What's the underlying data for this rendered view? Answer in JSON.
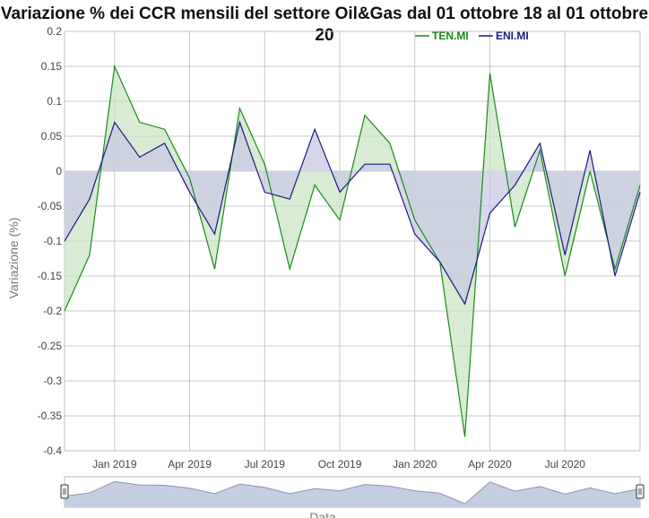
{
  "chart_data": {
    "type": "area",
    "title": "Variazione % dei CCR mensili del settore Oil&Gas dal 01 ottobre 18 al 01 ottobre 20",
    "ylabel": "Variazione (%)",
    "xlabel": "Data",
    "ylim": [
      -0.4,
      0.2
    ],
    "ytick_labels": [
      "0.2",
      "0.15",
      "0.1",
      "0.05",
      "0",
      "-0.05",
      "-0.1",
      "-0.15",
      "-0.2",
      "-0.25",
      "-0.3",
      "-0.35",
      "-0.4"
    ],
    "xtick_labels": [
      "Jan 2019",
      "Apr 2019",
      "Jul 2019",
      "Oct 2019",
      "Jan 2020",
      "Apr 2020",
      "Jul 2020"
    ],
    "x": [
      "2018-11",
      "2018-12",
      "2019-01",
      "2019-02",
      "2019-03",
      "2019-04",
      "2019-05",
      "2019-06",
      "2019-07",
      "2019-08",
      "2019-09",
      "2019-10",
      "2019-11",
      "2019-12",
      "2020-01",
      "2020-02",
      "2020-03",
      "2020-04",
      "2020-05",
      "2020-06",
      "2020-07",
      "2020-08",
      "2020-09",
      "2020-10"
    ],
    "series": [
      {
        "name": "TEN.MI",
        "color": "#1a8a1a",
        "fill": "#c9e6c3",
        "values": [
          -0.2,
          -0.12,
          0.15,
          0.07,
          0.06,
          -0.01,
          -0.14,
          0.09,
          0.01,
          -0.14,
          -0.02,
          -0.07,
          0.08,
          0.04,
          -0.07,
          -0.13,
          -0.38,
          0.14,
          -0.08,
          0.03,
          -0.15,
          0.0,
          -0.14,
          -0.02
        ]
      },
      {
        "name": "ENI.MI",
        "color": "#1a1a80",
        "fill": "#c9c9e6",
        "values": [
          -0.1,
          -0.04,
          0.07,
          0.02,
          0.04,
          -0.03,
          -0.09,
          0.07,
          -0.03,
          -0.04,
          0.06,
          -0.03,
          0.01,
          0.01,
          -0.09,
          -0.13,
          -0.19,
          -0.06,
          -0.02,
          0.04,
          -0.12,
          0.03,
          -0.15,
          -0.03
        ]
      }
    ],
    "grid": true,
    "legend_position": "top-right",
    "navigator": true
  }
}
